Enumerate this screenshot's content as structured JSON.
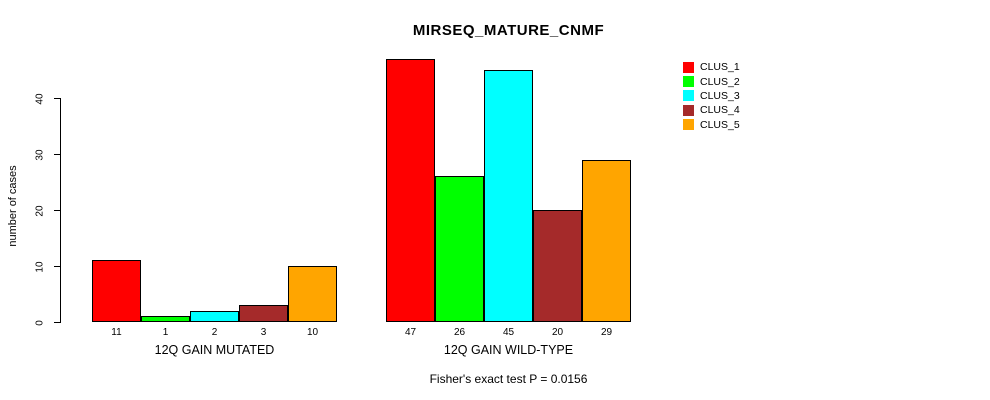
{
  "chart_data": {
    "type": "bar",
    "title": "MIRSEQ_MATURE_CNMF",
    "ylabel": "number of cases",
    "xlabel": "",
    "ylim": [
      0,
      47
    ],
    "yticks": [
      0,
      10,
      20,
      30,
      40
    ],
    "grid": false,
    "legend_position": "right",
    "series": [
      {
        "name": "CLUS_1",
        "color": "#FF0000"
      },
      {
        "name": "CLUS_2",
        "color": "#00FF00"
      },
      {
        "name": "CLUS_3",
        "color": "#00FFFF"
      },
      {
        "name": "CLUS_4",
        "color": "#A52A2A"
      },
      {
        "name": "CLUS_5",
        "color": "#FFA500"
      }
    ],
    "groups": [
      {
        "label": "12Q GAIN MUTATED",
        "values": [
          11,
          1,
          2,
          3,
          10
        ]
      },
      {
        "label": "12Q GAIN WILD-TYPE",
        "values": [
          47,
          26,
          45,
          20,
          29
        ]
      }
    ],
    "footnote": "Fisher's exact test P = 0.0156"
  }
}
